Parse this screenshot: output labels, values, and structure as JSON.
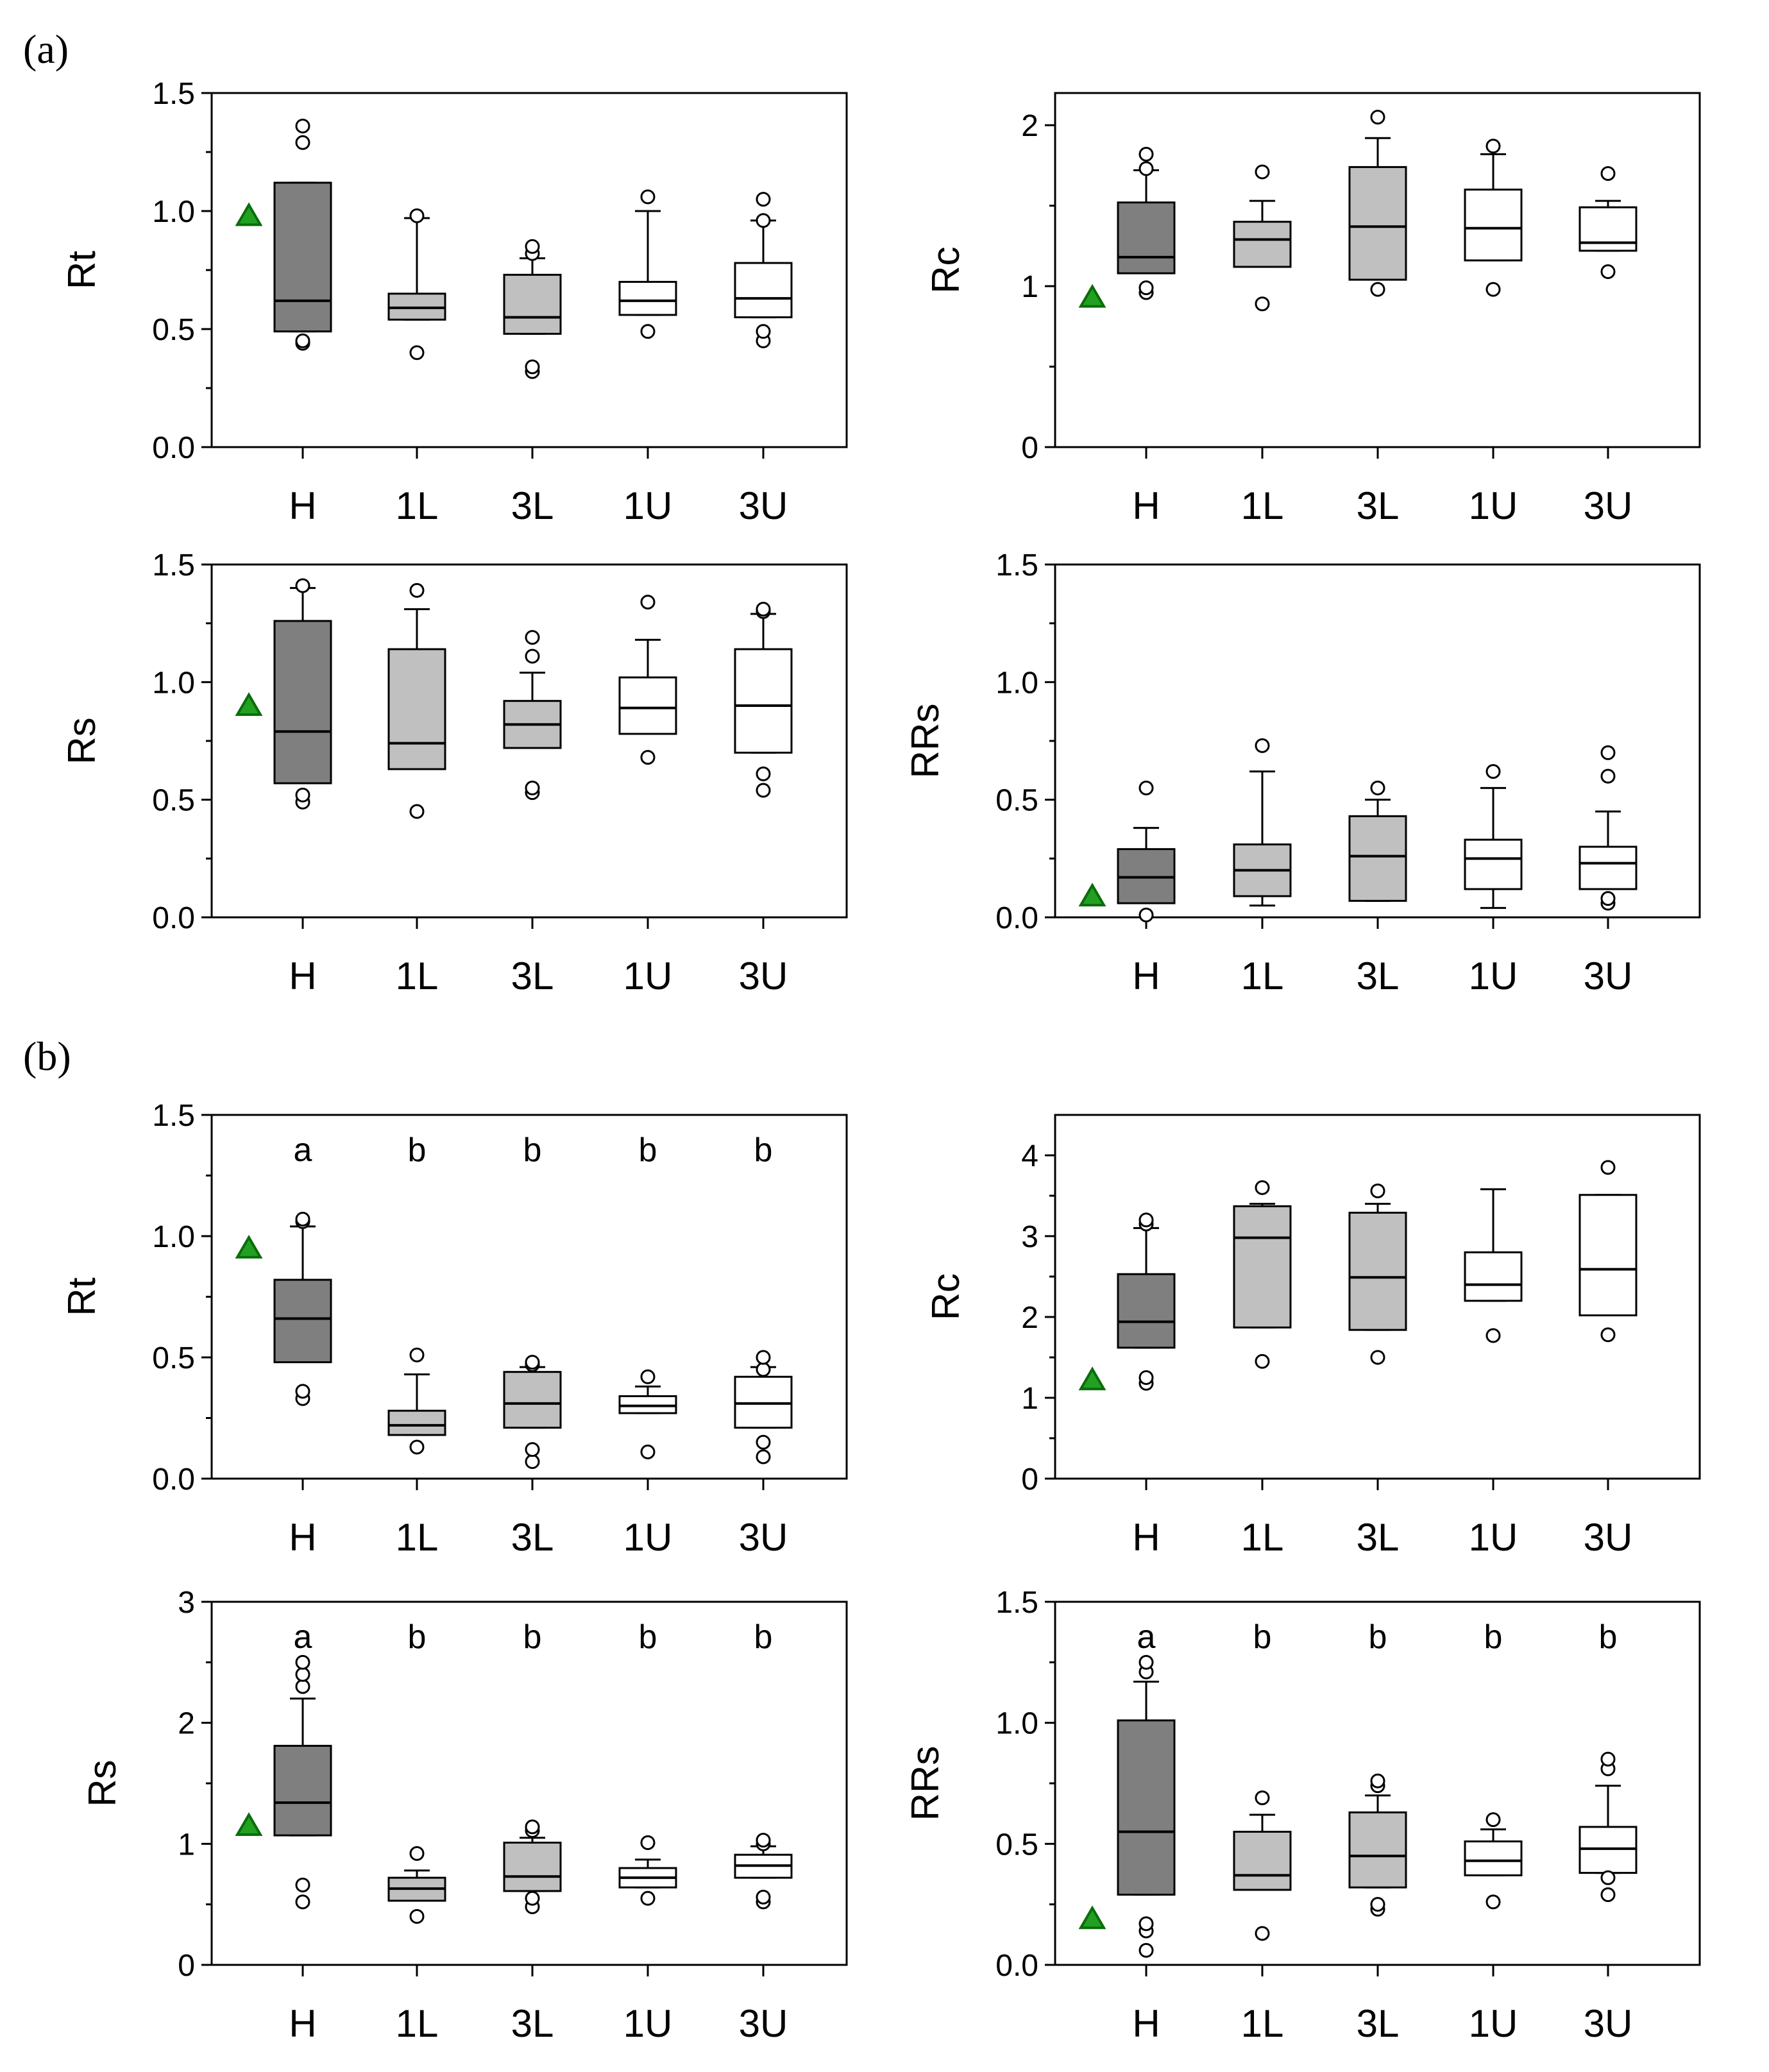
{
  "panel_labels": [
    "(a)",
    "(b)"
  ],
  "colors": {
    "H": "#7f7f7f",
    "1L": "#c0c0c0",
    "3L": "#c0c0c0",
    "1U": "#ffffff",
    "3U": "#ffffff",
    "reference_marker": "#22a022",
    "reference_marker_edge": "#0a6e0a"
  },
  "chart_data": [
    {
      "id": "a-rt",
      "panel": "(a)",
      "type": "box",
      "ylabel": "Rt",
      "categories": [
        "H",
        "1L",
        "3L",
        "1U",
        "3U"
      ],
      "ylim": [
        0,
        1.5
      ],
      "yticks": [
        0.0,
        0.5,
        1.0,
        1.5
      ],
      "ytick_labels": [
        "0.0",
        "0.5",
        "1.0",
        "1.5"
      ],
      "reference": 0.98,
      "significance": [],
      "boxes": [
        {
          "whislo": 0.49,
          "q1": 0.49,
          "med": 0.62,
          "q3": 1.12,
          "whishi": 1.12,
          "fliers": [
            0.44,
            0.45,
            1.29,
            1.36
          ]
        },
        {
          "whislo": 0.54,
          "q1": 0.54,
          "med": 0.59,
          "q3": 0.65,
          "whishi": 0.97,
          "fliers": [
            0.4,
            0.98
          ]
        },
        {
          "whislo": 0.48,
          "q1": 0.48,
          "med": 0.55,
          "q3": 0.73,
          "whishi": 0.8,
          "fliers": [
            0.32,
            0.34,
            0.82,
            0.85
          ]
        },
        {
          "whislo": 0.56,
          "q1": 0.56,
          "med": 0.62,
          "q3": 0.7,
          "whishi": 1.0,
          "fliers": [
            0.49,
            1.06
          ]
        },
        {
          "whislo": 0.55,
          "q1": 0.55,
          "med": 0.63,
          "q3": 0.78,
          "whishi": 0.96,
          "fliers": [
            0.45,
            0.49,
            0.96,
            1.05
          ]
        }
      ]
    },
    {
      "id": "a-rc",
      "panel": "(a)",
      "type": "box",
      "ylabel": "Rc",
      "categories": [
        "H",
        "1L",
        "3L",
        "1U",
        "3U"
      ],
      "ylim": [
        0,
        2.2
      ],
      "yticks": [
        0,
        1,
        2
      ],
      "ytick_labels": [
        "0",
        "1",
        "2"
      ],
      "reference": 0.93,
      "significance": [],
      "boxes": [
        {
          "whislo": 1.08,
          "q1": 1.08,
          "med": 1.18,
          "q3": 1.52,
          "whishi": 1.72,
          "fliers": [
            0.96,
            0.99,
            1.73,
            1.82
          ]
        },
        {
          "whislo": 1.12,
          "q1": 1.12,
          "med": 1.29,
          "q3": 1.4,
          "whishi": 1.53,
          "fliers": [
            0.89,
            1.71
          ]
        },
        {
          "whislo": 1.04,
          "q1": 1.04,
          "med": 1.37,
          "q3": 1.74,
          "whishi": 1.92,
          "fliers": [
            0.98,
            2.05
          ]
        },
        {
          "whislo": 1.16,
          "q1": 1.16,
          "med": 1.36,
          "q3": 1.6,
          "whishi": 1.82,
          "fliers": [
            0.98,
            1.87
          ]
        },
        {
          "whislo": 1.22,
          "q1": 1.22,
          "med": 1.27,
          "q3": 1.49,
          "whishi": 1.53,
          "fliers": [
            1.09,
            1.7
          ]
        }
      ]
    },
    {
      "id": "a-rs",
      "panel": "(a)",
      "type": "box",
      "ylabel": "Rs",
      "categories": [
        "H",
        "1L",
        "3L",
        "1U",
        "3U"
      ],
      "ylim": [
        0,
        1.5
      ],
      "yticks": [
        0.0,
        0.5,
        1.0,
        1.5
      ],
      "ytick_labels": [
        "0.0",
        "0.5",
        "1.0",
        "1.5"
      ],
      "reference": 0.9,
      "significance": [],
      "boxes": [
        {
          "whislo": 0.57,
          "q1": 0.57,
          "med": 0.79,
          "q3": 1.26,
          "whishi": 1.4,
          "fliers": [
            0.49,
            0.52,
            1.41
          ]
        },
        {
          "whislo": 0.63,
          "q1": 0.63,
          "med": 0.74,
          "q3": 1.14,
          "whishi": 1.31,
          "fliers": [
            0.45,
            1.39
          ]
        },
        {
          "whislo": 0.72,
          "q1": 0.72,
          "med": 0.82,
          "q3": 0.92,
          "whishi": 1.04,
          "fliers": [
            0.53,
            0.55,
            1.11,
            1.19
          ]
        },
        {
          "whislo": 0.78,
          "q1": 0.78,
          "med": 0.89,
          "q3": 1.02,
          "whishi": 1.18,
          "fliers": [
            0.68,
            1.34
          ]
        },
        {
          "whislo": 0.7,
          "q1": 0.7,
          "med": 0.9,
          "q3": 1.14,
          "whishi": 1.29,
          "fliers": [
            0.54,
            0.61,
            1.3,
            1.31
          ]
        }
      ]
    },
    {
      "id": "a-rrs",
      "panel": "(a)",
      "type": "box",
      "ylabel": "RRs",
      "categories": [
        "H",
        "1L",
        "3L",
        "1U",
        "3U"
      ],
      "ylim": [
        0,
        1.5
      ],
      "yticks": [
        0.0,
        0.5,
        1.0,
        1.5
      ],
      "ytick_labels": [
        "0.0",
        "0.5",
        "1.0",
        "1.5"
      ],
      "reference": 0.09,
      "significance": [],
      "boxes": [
        {
          "whislo": 0.06,
          "q1": 0.06,
          "med": 0.17,
          "q3": 0.29,
          "whishi": 0.38,
          "fliers": [
            0.01,
            0.55
          ]
        },
        {
          "whislo": 0.05,
          "q1": 0.09,
          "med": 0.2,
          "q3": 0.31,
          "whishi": 0.62,
          "fliers": [
            0.73
          ]
        },
        {
          "whislo": 0.07,
          "q1": 0.07,
          "med": 0.26,
          "q3": 0.43,
          "whishi": 0.5,
          "fliers": [
            0.55
          ]
        },
        {
          "whislo": 0.04,
          "q1": 0.12,
          "med": 0.25,
          "q3": 0.33,
          "whishi": 0.55,
          "fliers": [
            0.62
          ]
        },
        {
          "whislo": 0.12,
          "q1": 0.12,
          "med": 0.23,
          "q3": 0.3,
          "whishi": 0.45,
          "fliers": [
            0.06,
            0.08,
            0.6,
            0.7
          ]
        }
      ]
    },
    {
      "id": "b-rt",
      "panel": "(b)",
      "type": "box",
      "ylabel": "Rt",
      "categories": [
        "H",
        "1L",
        "3L",
        "1U",
        "3U"
      ],
      "ylim": [
        0,
        1.5
      ],
      "yticks": [
        0.0,
        0.5,
        1.0,
        1.5
      ],
      "ytick_labels": [
        "0.0",
        "0.5",
        "1.0",
        "1.5"
      ],
      "reference": 0.95,
      "significance": [
        "a",
        "b",
        "b",
        "b",
        "b"
      ],
      "boxes": [
        {
          "whislo": 0.48,
          "q1": 0.48,
          "med": 0.66,
          "q3": 0.82,
          "whishi": 1.04,
          "fliers": [
            0.33,
            0.36,
            1.06,
            1.07
          ]
        },
        {
          "whislo": 0.18,
          "q1": 0.18,
          "med": 0.22,
          "q3": 0.28,
          "whishi": 0.43,
          "fliers": [
            0.13,
            0.51
          ]
        },
        {
          "whislo": 0.21,
          "q1": 0.21,
          "med": 0.31,
          "q3": 0.44,
          "whishi": 0.46,
          "fliers": [
            0.07,
            0.12,
            0.47,
            0.48
          ]
        },
        {
          "whislo": 0.27,
          "q1": 0.27,
          "med": 0.3,
          "q3": 0.34,
          "whishi": 0.38,
          "fliers": [
            0.11,
            0.42
          ]
        },
        {
          "whislo": 0.21,
          "q1": 0.21,
          "med": 0.31,
          "q3": 0.42,
          "whishi": 0.46,
          "fliers": [
            0.09,
            0.15,
            0.45,
            0.5
          ]
        }
      ]
    },
    {
      "id": "b-rc",
      "panel": "(b)",
      "type": "box",
      "ylabel": "Rc",
      "categories": [
        "H",
        "1L",
        "3L",
        "1U",
        "3U"
      ],
      "ylim": [
        0,
        4.5
      ],
      "yticks": [
        0,
        1,
        2,
        3,
        4
      ],
      "ytick_labels": [
        "0",
        "1",
        "2",
        "3",
        "4"
      ],
      "reference": 1.22,
      "significance": [],
      "boxes": [
        {
          "whislo": 1.62,
          "q1": 1.62,
          "med": 1.94,
          "q3": 2.53,
          "whishi": 3.1,
          "fliers": [
            1.18,
            1.25,
            3.15,
            3.2
          ]
        },
        {
          "whislo": 1.87,
          "q1": 1.87,
          "med": 2.98,
          "q3": 3.37,
          "whishi": 3.4,
          "fliers": [
            1.45,
            3.6
          ]
        },
        {
          "whislo": 1.84,
          "q1": 1.84,
          "med": 2.49,
          "q3": 3.29,
          "whishi": 3.4,
          "fliers": [
            1.5,
            3.56
          ]
        },
        {
          "whislo": 2.2,
          "q1": 2.2,
          "med": 2.4,
          "q3": 2.8,
          "whishi": 3.58,
          "fliers": [
            1.77
          ]
        },
        {
          "whislo": 2.02,
          "q1": 2.02,
          "med": 2.59,
          "q3": 3.51,
          "whishi": 3.51,
          "fliers": [
            1.78,
            3.85
          ]
        }
      ]
    },
    {
      "id": "b-rs",
      "panel": "(b)",
      "type": "box",
      "ylabel": "Rs",
      "categories": [
        "H",
        "1L",
        "3L",
        "1U",
        "3U"
      ],
      "ylim": [
        0,
        3
      ],
      "yticks": [
        0,
        1,
        2,
        3
      ],
      "ytick_labels": [
        "0",
        "1",
        "2",
        "3"
      ],
      "reference": 1.15,
      "significance": [
        "a",
        "b",
        "b",
        "b",
        "b"
      ],
      "boxes": [
        {
          "whislo": 1.07,
          "q1": 1.07,
          "med": 1.34,
          "q3": 1.81,
          "whishi": 2.2,
          "fliers": [
            0.52,
            0.66,
            2.3,
            2.4,
            2.5
          ]
        },
        {
          "whislo": 0.53,
          "q1": 0.53,
          "med": 0.63,
          "q3": 0.72,
          "whishi": 0.78,
          "fliers": [
            0.4,
            0.92
          ]
        },
        {
          "whislo": 0.61,
          "q1": 0.61,
          "med": 0.73,
          "q3": 1.01,
          "whishi": 1.05,
          "fliers": [
            0.48,
            0.55,
            1.11,
            1.14
          ]
        },
        {
          "whislo": 0.64,
          "q1": 0.64,
          "med": 0.72,
          "q3": 0.8,
          "whishi": 0.87,
          "fliers": [
            0.55,
            1.01
          ]
        },
        {
          "whislo": 0.72,
          "q1": 0.72,
          "med": 0.82,
          "q3": 0.91,
          "whishi": 0.98,
          "fliers": [
            0.52,
            0.56,
            1.0,
            1.03
          ]
        }
      ]
    },
    {
      "id": "b-rrs",
      "panel": "(b)",
      "type": "box",
      "ylabel": "RRs",
      "categories": [
        "H",
        "1L",
        "3L",
        "1U",
        "3U"
      ],
      "ylim": [
        0,
        1.5
      ],
      "yticks": [
        0.0,
        0.5,
        1.0,
        1.5
      ],
      "ytick_labels": [
        "0.0",
        "0.5",
        "1.0",
        "1.5"
      ],
      "reference": 0.19,
      "significance": [
        "a",
        "b",
        "b",
        "b",
        "b"
      ],
      "boxes": [
        {
          "whislo": 0.29,
          "q1": 0.29,
          "med": 0.55,
          "q3": 1.01,
          "whishi": 1.17,
          "fliers": [
            0.06,
            0.14,
            0.17,
            1.21,
            1.25
          ]
        },
        {
          "whislo": 0.31,
          "q1": 0.31,
          "med": 0.37,
          "q3": 0.55,
          "whishi": 0.62,
          "fliers": [
            0.13,
            0.69
          ]
        },
        {
          "whislo": 0.32,
          "q1": 0.32,
          "med": 0.45,
          "q3": 0.63,
          "whishi": 0.7,
          "fliers": [
            0.23,
            0.25,
            0.74,
            0.76
          ]
        },
        {
          "whislo": 0.37,
          "q1": 0.37,
          "med": 0.43,
          "q3": 0.51,
          "whishi": 0.56,
          "fliers": [
            0.26,
            0.6
          ]
        },
        {
          "whislo": 0.38,
          "q1": 0.38,
          "med": 0.48,
          "q3": 0.57,
          "whishi": 0.74,
          "fliers": [
            0.29,
            0.36,
            0.81,
            0.85
          ]
        }
      ]
    }
  ]
}
